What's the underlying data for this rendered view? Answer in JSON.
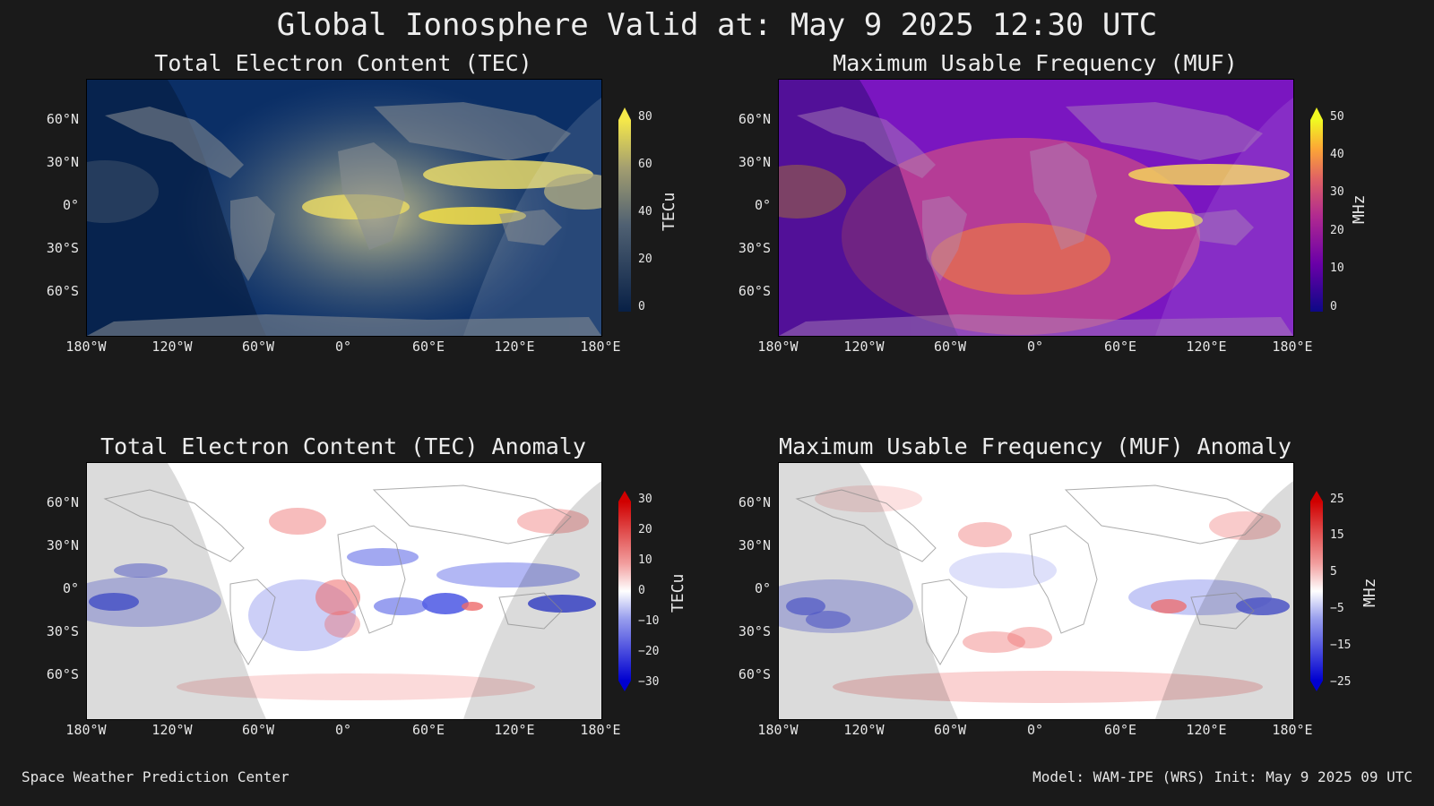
{
  "header": {
    "title": "Global Ionosphere Valid at: May 9 2025 12:30 UTC"
  },
  "axis_labels": {
    "lat": [
      "60°N",
      "30°N",
      "0°",
      "30°S",
      "60°S"
    ],
    "lon": [
      "180°W",
      "120°W",
      "60°W",
      "0°",
      "60°E",
      "120°E",
      "180°E"
    ]
  },
  "panels": {
    "tec": {
      "title": "Total Electron Content (TEC)",
      "unit": "TECu",
      "ticks": [
        "80",
        "60",
        "40",
        "20",
        "0"
      ],
      "colors": {
        "bg": "#0a2a5e",
        "mid": "#6f7f8a",
        "high": "#f2e04e",
        "low": "#082046"
      }
    },
    "muf": {
      "title": "Maximum Usable Frequency (MUF)",
      "unit": "MHz",
      "ticks": [
        "50",
        "40",
        "30",
        "20",
        "10",
        "0"
      ],
      "colors": {
        "bg": "#6a10b8",
        "mid": "#d0508a",
        "high": "#f7e84a",
        "low": "#2a0a90"
      }
    },
    "tec_anomaly": {
      "title": "Total Electron Content (TEC) Anomaly",
      "unit": "TECu",
      "ticks": [
        "30",
        "20",
        "10",
        "0",
        "−10",
        "−20",
        "−30"
      ],
      "colors": {
        "bg": "#ffffff",
        "neg": "#2a2ad8",
        "pos": "#e84a4a"
      }
    },
    "muf_anomaly": {
      "title": "Maximum Usable Frequency (MUF) Anomaly",
      "unit": "MHz",
      "ticks": [
        "25",
        "15",
        "5",
        "−5",
        "−15",
        "−25"
      ],
      "colors": {
        "bg": "#ffffff",
        "neg": "#2a2ad8",
        "pos": "#e84a4a"
      }
    }
  },
  "footer": {
    "left": "Space Weather Prediction Center",
    "right": "Model: WAM-IPE (WRS) Init: May 9 2025 09 UTC"
  }
}
